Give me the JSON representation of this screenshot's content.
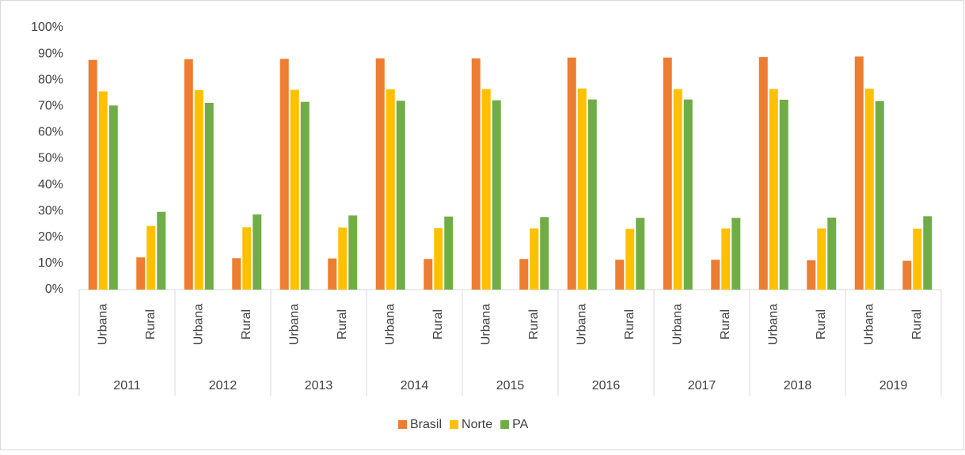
{
  "chart_data": {
    "type": "bar",
    "categories": [
      "Urbana",
      "Rural",
      "Urbana",
      "Rural",
      "Urbana",
      "Rural",
      "Urbana",
      "Rural",
      "Urbana",
      "Rural",
      "Urbana",
      "Rural",
      "Urbana",
      "Rural",
      "Urbana",
      "Rural",
      "Urbana",
      "Rural"
    ],
    "groups": [
      "2011",
      "2012",
      "2013",
      "2014",
      "2015",
      "2016",
      "2017",
      "2018",
      "2019"
    ],
    "series": [
      {
        "name": "Brasil",
        "color": "#ed7d31",
        "values": [
          87.7,
          12.3,
          88.0,
          12.0,
          88.1,
          11.9,
          88.3,
          11.7,
          88.3,
          11.7,
          88.6,
          11.4,
          88.6,
          11.4,
          88.8,
          11.2,
          89.0,
          11.0
        ]
      },
      {
        "name": "Norte",
        "color": "#ffc000",
        "values": [
          75.7,
          24.3,
          76.2,
          23.8,
          76.3,
          23.7,
          76.5,
          23.5,
          76.6,
          23.4,
          76.8,
          23.2,
          76.6,
          23.4,
          76.6,
          23.4,
          76.7,
          23.3
        ]
      },
      {
        "name": "PA",
        "color": "#70ad47",
        "values": [
          70.3,
          29.7,
          71.3,
          28.7,
          71.7,
          28.3,
          72.1,
          27.9,
          72.3,
          27.7,
          72.6,
          27.4,
          72.6,
          27.4,
          72.5,
          27.5,
          72.0,
          28.0
        ]
      }
    ],
    "ylim": [
      0,
      100
    ],
    "yticks": [
      {
        "value": 0,
        "label": "0%"
      },
      {
        "value": 10,
        "label": "10%"
      },
      {
        "value": 20,
        "label": "20%"
      },
      {
        "value": 30,
        "label": "30%"
      },
      {
        "value": 40,
        "label": "40%"
      },
      {
        "value": 50,
        "label": "50%"
      },
      {
        "value": 60,
        "label": "60%"
      },
      {
        "value": 70,
        "label": "70%"
      },
      {
        "value": 80,
        "label": "80%"
      },
      {
        "value": 90,
        "label": "90%"
      },
      {
        "value": 100,
        "label": "100%"
      }
    ],
    "grid": false,
    "legend": "bottom"
  }
}
